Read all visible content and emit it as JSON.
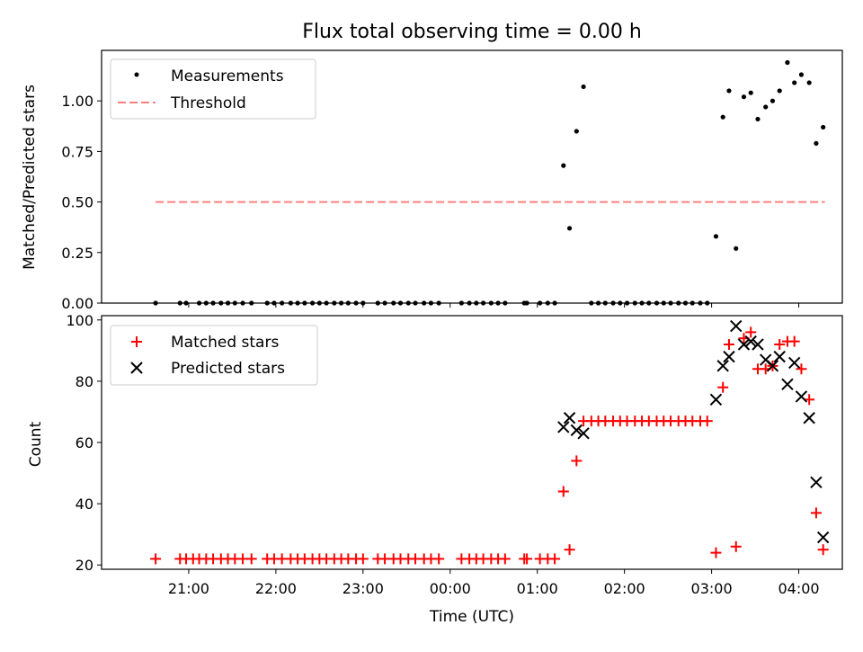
{
  "chart_data": [
    {
      "type": "scatter",
      "title": "Flux total observing time = 0.00 h",
      "xlabel": "",
      "ylabel": "Matched/Predicted stars",
      "ylim": [
        0,
        1.25
      ],
      "yticks": [
        "0.00",
        "0.25",
        "0.50",
        "0.75",
        "1.00"
      ],
      "legend": [
        "Measurements",
        "Threshold"
      ],
      "legend_position": "upper-left",
      "threshold": {
        "name": "Threshold",
        "value": 0.5,
        "x_start": 20.62,
        "x_end": 28.3,
        "color": "#ff7f7f"
      },
      "series": [
        {
          "name": "Measurements",
          "color": "#000000",
          "points": [
            [
              20.62,
              0
            ],
            [
              20.9,
              0
            ],
            [
              20.97,
              0
            ],
            [
              21.12,
              0
            ],
            [
              21.2,
              0
            ],
            [
              21.28,
              0
            ],
            [
              21.37,
              0
            ],
            [
              21.45,
              0
            ],
            [
              21.53,
              0
            ],
            [
              21.62,
              0
            ],
            [
              21.72,
              0
            ],
            [
              21.9,
              0
            ],
            [
              21.98,
              0
            ],
            [
              22.07,
              0
            ],
            [
              22.17,
              0
            ],
            [
              22.25,
              0
            ],
            [
              22.33,
              0
            ],
            [
              22.42,
              0
            ],
            [
              22.5,
              0
            ],
            [
              22.58,
              0
            ],
            [
              22.67,
              0
            ],
            [
              22.75,
              0
            ],
            [
              22.83,
              0
            ],
            [
              22.92,
              0
            ],
            [
              23.0,
              0
            ],
            [
              23.17,
              0
            ],
            [
              23.25,
              0
            ],
            [
              23.35,
              0
            ],
            [
              23.43,
              0
            ],
            [
              23.52,
              0
            ],
            [
              23.6,
              0
            ],
            [
              23.7,
              0
            ],
            [
              23.78,
              0
            ],
            [
              23.87,
              0
            ],
            [
              24.13,
              0
            ],
            [
              24.22,
              0
            ],
            [
              24.3,
              0
            ],
            [
              24.38,
              0
            ],
            [
              24.47,
              0
            ],
            [
              24.55,
              0
            ],
            [
              24.63,
              0
            ],
            [
              24.85,
              0
            ],
            [
              24.88,
              0
            ],
            [
              25.03,
              0
            ],
            [
              25.12,
              0
            ],
            [
              25.2,
              0
            ],
            [
              25.3,
              0.68
            ],
            [
              25.37,
              0.37
            ],
            [
              25.45,
              0.85
            ],
            [
              25.53,
              1.07
            ],
            [
              25.62,
              0
            ],
            [
              25.7,
              0
            ],
            [
              25.78,
              0
            ],
            [
              25.87,
              0
            ],
            [
              25.95,
              0
            ],
            [
              26.03,
              0
            ],
            [
              26.12,
              0
            ],
            [
              26.2,
              0
            ],
            [
              26.28,
              0
            ],
            [
              26.37,
              0
            ],
            [
              26.45,
              0
            ],
            [
              26.53,
              0
            ],
            [
              26.62,
              0
            ],
            [
              26.7,
              0
            ],
            [
              26.78,
              0
            ],
            [
              26.87,
              0
            ],
            [
              26.95,
              0
            ],
            [
              27.05,
              0.33
            ],
            [
              27.13,
              0.92
            ],
            [
              27.2,
              1.05
            ],
            [
              27.28,
              0.27
            ],
            [
              27.37,
              1.02
            ],
            [
              27.45,
              1.04
            ],
            [
              27.53,
              0.91
            ],
            [
              27.62,
              0.97
            ],
            [
              27.7,
              1.0
            ],
            [
              27.78,
              1.05
            ],
            [
              27.87,
              1.19
            ],
            [
              27.95,
              1.09
            ],
            [
              28.03,
              1.13
            ],
            [
              28.12,
              1.09
            ],
            [
              28.2,
              0.79
            ],
            [
              28.28,
              0.87
            ]
          ]
        }
      ]
    },
    {
      "type": "scatter",
      "title": "",
      "xlabel": "Time (UTC)",
      "ylabel": "Count",
      "ylim": [
        18.6,
        101.4
      ],
      "yticks": [
        "20",
        "40",
        "60",
        "80",
        "100"
      ],
      "xlim": [
        20.0,
        28.5
      ],
      "xticks": [
        "21:00",
        "22:00",
        "23:00",
        "00:00",
        "01:00",
        "02:00",
        "03:00",
        "04:00"
      ],
      "legend": [
        "Matched stars",
        "Predicted stars"
      ],
      "legend_position": "upper-left",
      "series": [
        {
          "name": "Matched stars",
          "color": "#ff0000",
          "points": [
            [
              20.62,
              22
            ],
            [
              20.9,
              22
            ],
            [
              20.97,
              22
            ],
            [
              21.05,
              22
            ],
            [
              21.12,
              22
            ],
            [
              21.2,
              22
            ],
            [
              21.28,
              22
            ],
            [
              21.37,
              22
            ],
            [
              21.45,
              22
            ],
            [
              21.53,
              22
            ],
            [
              21.62,
              22
            ],
            [
              21.72,
              22
            ],
            [
              21.9,
              22
            ],
            [
              21.98,
              22
            ],
            [
              22.07,
              22
            ],
            [
              22.17,
              22
            ],
            [
              22.25,
              22
            ],
            [
              22.33,
              22
            ],
            [
              22.42,
              22
            ],
            [
              22.5,
              22
            ],
            [
              22.58,
              22
            ],
            [
              22.67,
              22
            ],
            [
              22.75,
              22
            ],
            [
              22.83,
              22
            ],
            [
              22.92,
              22
            ],
            [
              23.0,
              22
            ],
            [
              23.17,
              22
            ],
            [
              23.25,
              22
            ],
            [
              23.35,
              22
            ],
            [
              23.43,
              22
            ],
            [
              23.52,
              22
            ],
            [
              23.6,
              22
            ],
            [
              23.7,
              22
            ],
            [
              23.78,
              22
            ],
            [
              23.87,
              22
            ],
            [
              24.13,
              22
            ],
            [
              24.22,
              22
            ],
            [
              24.3,
              22
            ],
            [
              24.38,
              22
            ],
            [
              24.47,
              22
            ],
            [
              24.55,
              22
            ],
            [
              24.63,
              22
            ],
            [
              24.85,
              22
            ],
            [
              24.88,
              22
            ],
            [
              25.03,
              22
            ],
            [
              25.12,
              22
            ],
            [
              25.2,
              22
            ],
            [
              25.3,
              44
            ],
            [
              25.37,
              25
            ],
            [
              25.45,
              54
            ],
            [
              25.53,
              67
            ],
            [
              25.62,
              67
            ],
            [
              25.7,
              67
            ],
            [
              25.78,
              67
            ],
            [
              25.87,
              67
            ],
            [
              25.95,
              67
            ],
            [
              26.03,
              67
            ],
            [
              26.12,
              67
            ],
            [
              26.2,
              67
            ],
            [
              26.28,
              67
            ],
            [
              26.37,
              67
            ],
            [
              26.45,
              67
            ],
            [
              26.53,
              67
            ],
            [
              26.62,
              67
            ],
            [
              26.7,
              67
            ],
            [
              26.78,
              67
            ],
            [
              26.87,
              67
            ],
            [
              26.95,
              67
            ],
            [
              27.05,
              24
            ],
            [
              27.13,
              78
            ],
            [
              27.2,
              92
            ],
            [
              27.28,
              26
            ],
            [
              27.37,
              94
            ],
            [
              27.45,
              96
            ],
            [
              27.53,
              84
            ],
            [
              27.62,
              84
            ],
            [
              27.7,
              85
            ],
            [
              27.78,
              92
            ],
            [
              27.87,
              93
            ],
            [
              27.95,
              93
            ],
            [
              28.03,
              84
            ],
            [
              28.12,
              74
            ],
            [
              28.2,
              37
            ],
            [
              28.28,
              25
            ]
          ]
        },
        {
          "name": "Predicted stars",
          "color": "#000000",
          "points": [
            [
              25.3,
              65
            ],
            [
              25.37,
              68
            ],
            [
              25.45,
              64
            ],
            [
              25.53,
              63
            ],
            [
              27.05,
              74
            ],
            [
              27.13,
              85
            ],
            [
              27.2,
              88
            ],
            [
              27.28,
              98
            ],
            [
              27.37,
              92
            ],
            [
              27.45,
              93
            ],
            [
              27.53,
              92
            ],
            [
              27.62,
              87
            ],
            [
              27.7,
              85
            ],
            [
              27.78,
              88
            ],
            [
              27.87,
              79
            ],
            [
              27.95,
              86
            ],
            [
              28.03,
              75
            ],
            [
              28.12,
              68
            ],
            [
              28.2,
              47
            ],
            [
              28.28,
              29
            ]
          ]
        }
      ]
    }
  ]
}
